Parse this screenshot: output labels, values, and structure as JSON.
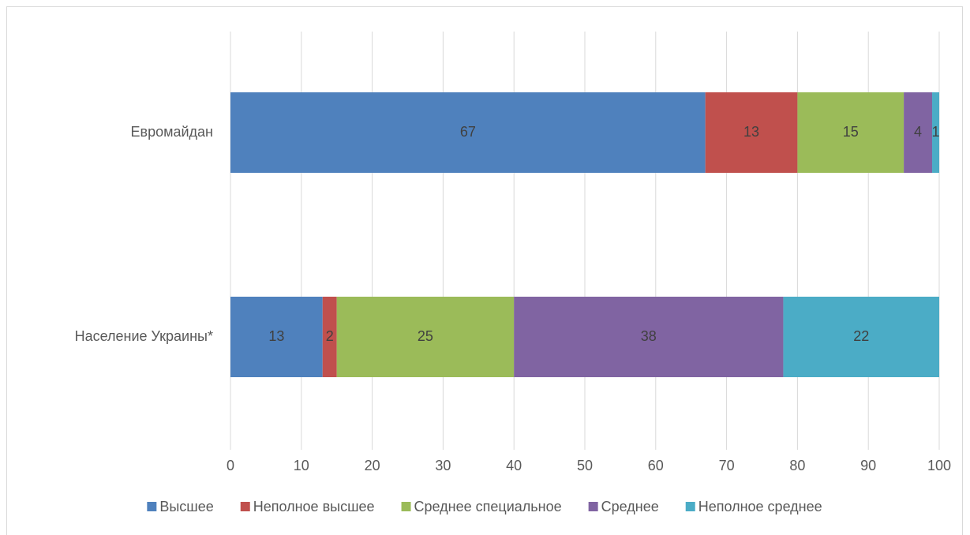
{
  "chart_data": {
    "type": "stacked_barh",
    "categories": [
      "Евромайдан",
      "Население Украины*"
    ],
    "series": [
      {
        "name": "Высшее",
        "color": "#4f81bd",
        "values": [
          67,
          13
        ]
      },
      {
        "name": "Неполное высшее",
        "color": "#c0504d",
        "values": [
          13,
          2
        ]
      },
      {
        "name": "Среднее специальное",
        "color": "#9bbb59",
        "values": [
          15,
          25
        ]
      },
      {
        "name": "Среднее",
        "color": "#8064a2",
        "values": [
          4,
          38
        ]
      },
      {
        "name": "Неполное среднее",
        "color": "#4bacc6",
        "values": [
          1,
          22
        ]
      }
    ],
    "xlim": [
      0,
      100
    ],
    "xticks": [
      0,
      10,
      20,
      30,
      40,
      50,
      60,
      70,
      80,
      90,
      100
    ],
    "grid": true,
    "legend": "bottom"
  }
}
